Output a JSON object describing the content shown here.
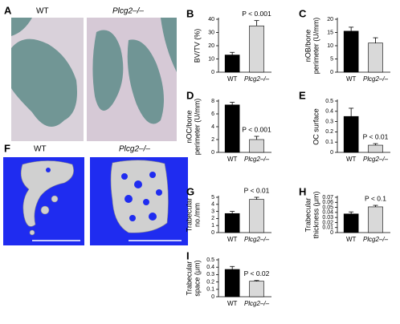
{
  "images": [
    {
      "panel": "A",
      "labels": [
        "WT",
        "Plcg2–/–"
      ]
    },
    {
      "panel": "F",
      "labels": [
        "WT",
        "Plcg2–/–"
      ]
    }
  ],
  "chart_data": [
    {
      "type": "bar",
      "panel": "B",
      "ylabel": [
        "BV/TV (%)"
      ],
      "categories": [
        "WT",
        "Plcg2–/–"
      ],
      "values": [
        13,
        35
      ],
      "errors": [
        2,
        4
      ],
      "colors": [
        "#000000",
        "#d9d9d9"
      ],
      "ylim": [
        0,
        40
      ],
      "yticks": [
        0,
        10,
        20,
        30,
        40
      ],
      "annotation": "P < 0.001"
    },
    {
      "type": "bar",
      "panel": "C",
      "ylabel": [
        "nOB/bone",
        "perimeter (U/mm)"
      ],
      "categories": [
        "WT",
        "Plcg2–/–"
      ],
      "values": [
        15.5,
        11
      ],
      "errors": [
        1.5,
        2
      ],
      "colors": [
        "#000000",
        "#d9d9d9"
      ],
      "ylim": [
        0,
        20
      ],
      "yticks": [
        0,
        5,
        10,
        15,
        20
      ]
    },
    {
      "type": "bar",
      "panel": "D",
      "ylabel": [
        "nOC/bone",
        "perimeter (U/mm)"
      ],
      "categories": [
        "WT",
        "Plcg2–/–"
      ],
      "values": [
        7.4,
        2
      ],
      "errors": [
        0.4,
        0.5
      ],
      "colors": [
        "#000000",
        "#d9d9d9"
      ],
      "ylim": [
        0,
        8
      ],
      "yticks": [
        0,
        2,
        4,
        6,
        8
      ],
      "annotation": "P < 0.001"
    },
    {
      "type": "bar",
      "panel": "E",
      "ylabel": [
        "OC surface"
      ],
      "categories": [
        "WT",
        "Plcg2–/–"
      ],
      "values": [
        0.35,
        0.07
      ],
      "errors": [
        0.08,
        0.015
      ],
      "colors": [
        "#000000",
        "#d9d9d9"
      ],
      "ylim": [
        0,
        0.5
      ],
      "yticks": [
        0,
        0.1,
        0.2,
        0.3,
        0.4,
        0.5
      ],
      "annotation": "P < 0.01"
    },
    {
      "type": "bar",
      "panel": "G",
      "ylabel": [
        "Trabecular",
        "no./mm"
      ],
      "categories": [
        "WT",
        "Plcg2–/–"
      ],
      "values": [
        2.7,
        4.7
      ],
      "errors": [
        0.3,
        0.3
      ],
      "colors": [
        "#000000",
        "#d9d9d9"
      ],
      "ylim": [
        0,
        5
      ],
      "yticks": [
        0,
        1,
        2,
        3,
        4,
        5
      ],
      "annotation": "P < 0.01"
    },
    {
      "type": "bar",
      "panel": "H",
      "ylabel": [
        "Trabecular",
        "thickness (μm)"
      ],
      "categories": [
        "WT",
        "Plcg2–/–"
      ],
      "values": [
        0.037,
        0.051
      ],
      "errors": [
        0.004,
        0.003
      ],
      "colors": [
        "#000000",
        "#d9d9d9"
      ],
      "ylim": [
        0,
        0.07
      ],
      "yticks": [
        0,
        0.01,
        0.02,
        0.03,
        0.04,
        0.05,
        0.06,
        0.07
      ],
      "annotation": "P < 0.1"
    },
    {
      "type": "bar",
      "panel": "I",
      "ylabel": [
        "Trabecular",
        "space (μm)"
      ],
      "categories": [
        "WT",
        "Plcg2–/–"
      ],
      "values": [
        0.37,
        0.21
      ],
      "errors": [
        0.04,
        0.01
      ],
      "colors": [
        "#000000",
        "#d9d9d9"
      ],
      "ylim": [
        0,
        0.5
      ],
      "yticks": [
        0,
        0.1,
        0.2,
        0.3,
        0.4,
        0.5
      ],
      "annotation": "P < 0.02"
    }
  ]
}
